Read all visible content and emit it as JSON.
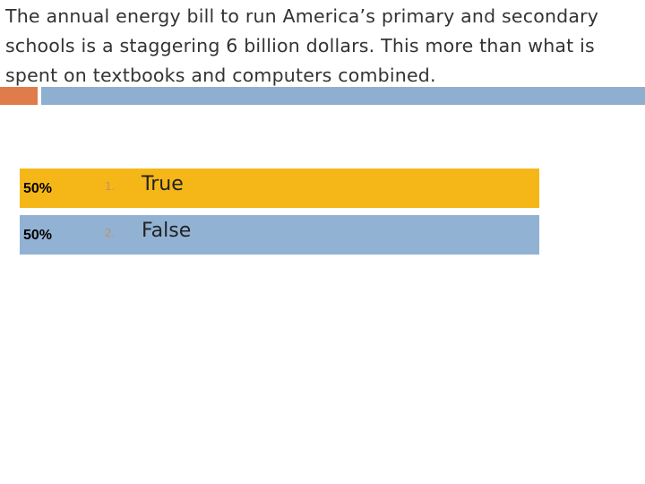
{
  "slide": {
    "title": "The annual energy bill to run America’s primary and secondary schools is a staggering 6 billion dollars.  This more than what is spent on textbooks and computers combined.",
    "options": [
      {
        "percent": "50%",
        "number": "1.",
        "label": "True"
      },
      {
        "percent": "50%",
        "number": "2.",
        "label": "False"
      }
    ]
  }
}
